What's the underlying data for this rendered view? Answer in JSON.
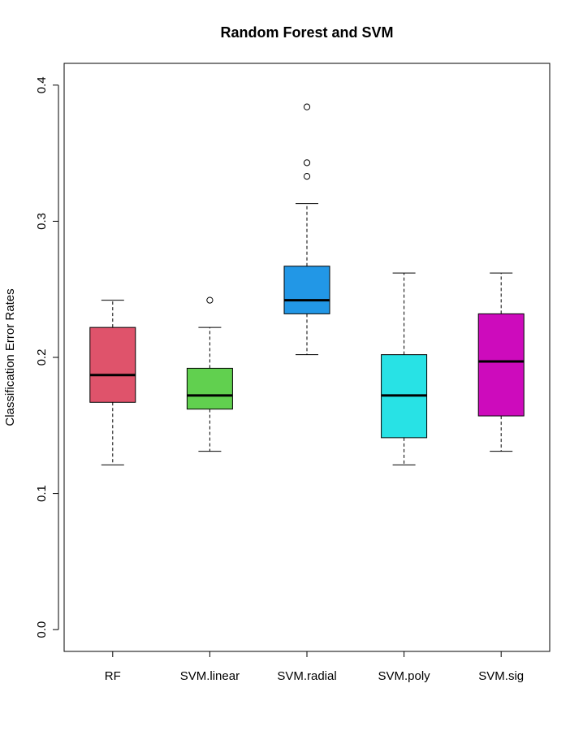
{
  "chart_data": {
    "type": "boxplot",
    "title": "Random Forest and SVM",
    "xlabel": "",
    "ylabel": "Classification Error Rates",
    "ylim": [
      -0.016,
      0.416
    ],
    "yticks": [
      0.0,
      0.1,
      0.2,
      0.3,
      0.4
    ],
    "ytick_labels": [
      "0.0",
      "0.1",
      "0.2",
      "0.3",
      "0.4"
    ],
    "categories": [
      "RF",
      "SVM.linear",
      "SVM.radial",
      "SVM.poly",
      "SVM.sig"
    ],
    "boxes": [
      {
        "name": "RF",
        "whisker_low": 0.121,
        "q1": 0.167,
        "median": 0.187,
        "q3": 0.222,
        "whisker_high": 0.242,
        "outliers": [],
        "color": "#DF536B"
      },
      {
        "name": "SVM.linear",
        "whisker_low": 0.131,
        "q1": 0.162,
        "median": 0.172,
        "q3": 0.192,
        "whisker_high": 0.222,
        "outliers": [
          0.242
        ],
        "color": "#61D04F"
      },
      {
        "name": "SVM.radial",
        "whisker_low": 0.202,
        "q1": 0.232,
        "median": 0.242,
        "q3": 0.267,
        "whisker_high": 0.313,
        "outliers": [
          0.333,
          0.343,
          0.384
        ],
        "color": "#2297E6"
      },
      {
        "name": "SVM.poly",
        "whisker_low": 0.121,
        "q1": 0.141,
        "median": 0.172,
        "q3": 0.202,
        "whisker_high": 0.262,
        "outliers": [],
        "color": "#28E2E5"
      },
      {
        "name": "SVM.sig",
        "whisker_low": 0.131,
        "q1": 0.157,
        "median": 0.197,
        "q3": 0.232,
        "whisker_high": 0.262,
        "outliers": [],
        "color": "#CD0BBC"
      }
    ],
    "grid": false,
    "legend": "none"
  }
}
